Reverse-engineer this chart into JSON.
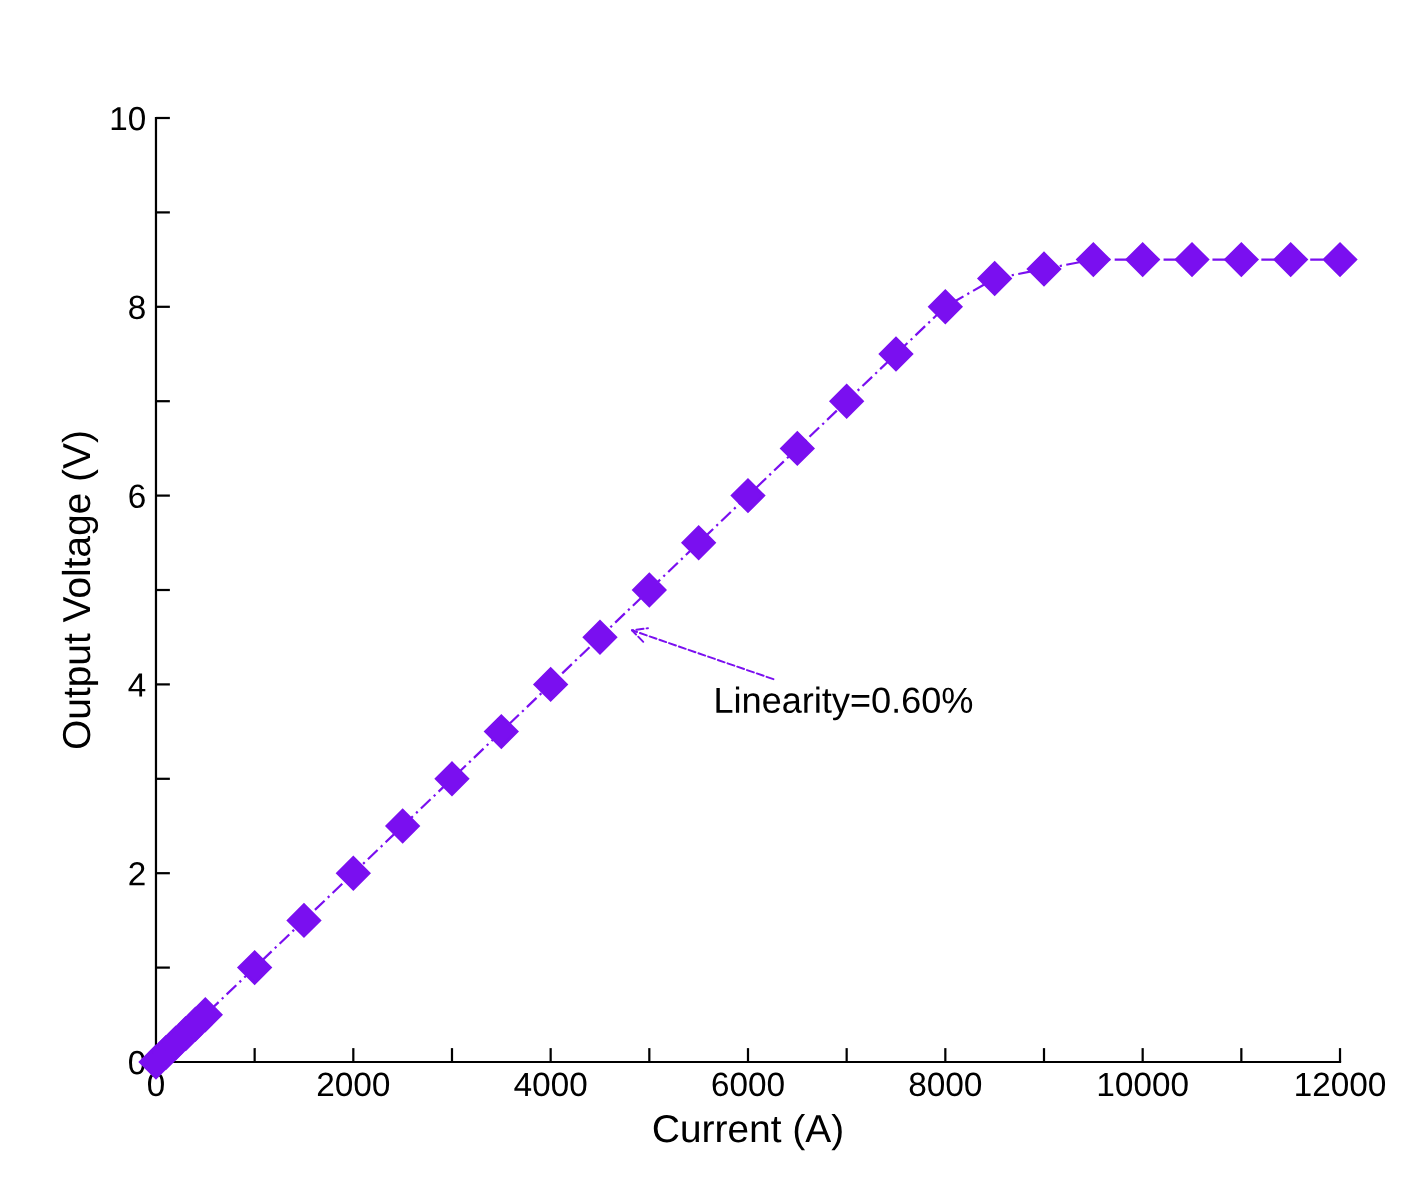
{
  "chart_data": {
    "type": "line",
    "xlabel": "Current (A)",
    "ylabel": "Output Voltage (V)",
    "xlim": [
      0,
      12000
    ],
    "ylim": [
      0,
      10
    ],
    "xticks": [
      0,
      {
        "value": 1000,
        "label": null
      },
      2000,
      {
        "value": 3000,
        "label": null
      },
      4000,
      {
        "value": 5000,
        "label": null
      },
      6000,
      {
        "value": 7000,
        "label": null
      },
      8000,
      {
        "value": 9000,
        "label": null
      },
      10000,
      {
        "value": 11000,
        "label": null
      },
      12000
    ],
    "yticks": [
      0,
      {
        "value": 1,
        "label": null
      },
      2,
      {
        "value": 3,
        "label": null
      },
      4,
      {
        "value": 5,
        "label": null
      },
      6,
      {
        "value": 7,
        "label": null
      },
      8,
      {
        "value": 9,
        "label": null
      },
      10
    ],
    "marker": "diamond",
    "line_style": "dashed",
    "grid": false,
    "series": [
      {
        "color": "#7a0ff0",
        "x": [
          0,
          100,
          200,
          300,
          400,
          500,
          1000,
          1500,
          2000,
          2500,
          3000,
          3500,
          4000,
          4500,
          5000,
          5500,
          6000,
          6500,
          7000,
          7500,
          8000,
          8500,
          9000,
          9500,
          10000,
          10500,
          11000,
          11500,
          12000
        ],
        "values": [
          0,
          0.1,
          0.2,
          0.3,
          0.4,
          0.5,
          1,
          1.5,
          2,
          2.5,
          3,
          3.5,
          4,
          4.5,
          5,
          5.5,
          6,
          6.5,
          7,
          7.5,
          8,
          8.3,
          8.4,
          8.5,
          8.5,
          8.5,
          8.5,
          8.5,
          8.5
        ]
      }
    ],
    "annotations": [
      {
        "text": "Linearity=0.60%",
        "x": 4750,
        "y": 4.6
      }
    ]
  }
}
